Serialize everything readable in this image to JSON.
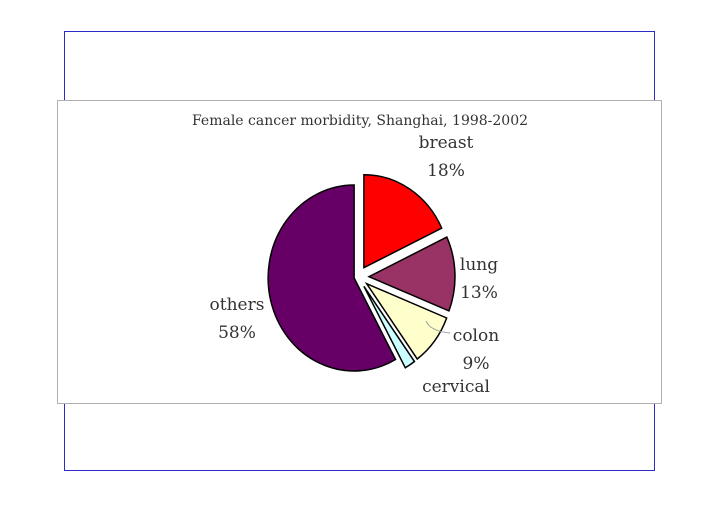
{
  "chart_data": {
    "type": "pie",
    "title": "Female cancer morbidity, Shanghai, 1998-2002",
    "slices": [
      {
        "label": "breast",
        "value": 18,
        "pct_label": "18%",
        "color": "#ff0000"
      },
      {
        "label": "lung",
        "value": 13,
        "pct_label": "13%",
        "color": "#993366"
      },
      {
        "label": "colon",
        "value": 9,
        "pct_label": "9%",
        "color": "#ffffcc"
      },
      {
        "label": "cervical",
        "value": 2,
        "pct_label": "2%",
        "color": "#ccffff"
      },
      {
        "label": "others",
        "value": 58,
        "pct_label": "58%",
        "color": "#660066"
      }
    ],
    "exploded": true,
    "start_angle": "12 o'clock, clockwise"
  },
  "frame_color": "#2b2bc8"
}
